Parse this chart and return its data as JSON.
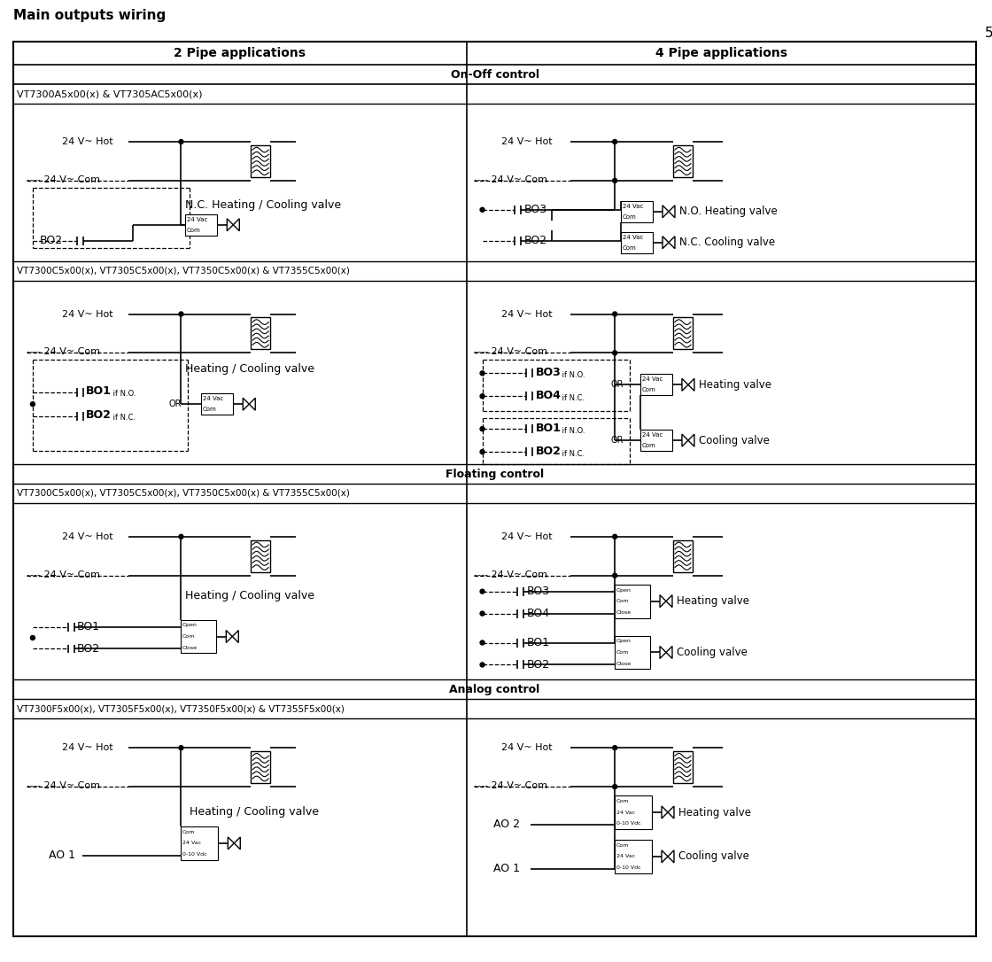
{
  "title": "Main outputs wiring",
  "page_num": "5",
  "col1_header": "2 Pipe applications",
  "col2_header": "4 Pipe applications",
  "onoff_label": "On-Off control",
  "floating_label": "Floating control",
  "analog_label": "Analog control",
  "row1_model": "VT7300A5x00(x) & VT7305AC5x00(x)",
  "row2_model": "VT7300C5x00(x), VT7305C5x00(x), VT7350C5x00(x) & VT7355C5x00(x)",
  "row3_model": "VT7300C5x00(x), VT7305C5x00(x), VT7350C5x00(x) & VT7355C5x00(x)",
  "row4_model": "VT7300F5x00(x), VT7305F5x00(x), VT7350F5x00(x) & VT7355F5x00(x)"
}
